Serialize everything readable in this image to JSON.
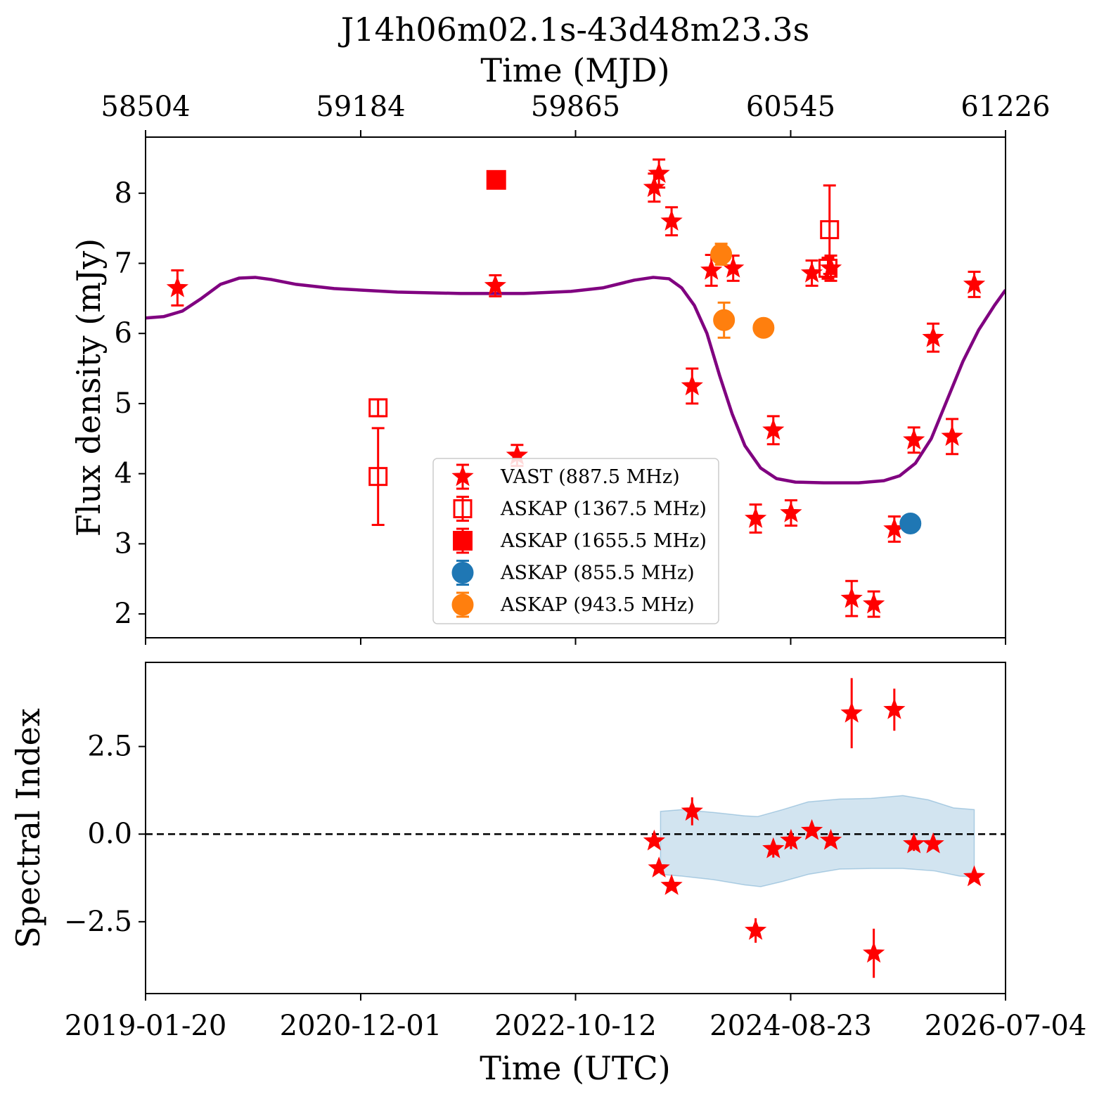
{
  "chart_data": [
    {
      "type": "scatter",
      "title": "J14h06m02.1s-43d48m23.3s",
      "xlabel": "Time (UTC)",
      "x2label": "Time (MJD)",
      "ylabel": "Flux density (mJy)",
      "x_unit": "MJD",
      "xlim": [
        58503,
        61225
      ],
      "ylim": [
        1.66,
        8.8
      ],
      "xticks": [
        {
          "mjd": 58503,
          "utc": "2019-01-20",
          "mjd_label": "58504"
        },
        {
          "mjd": 59184,
          "utc": "2020-12-01",
          "mjd_label": "59184"
        },
        {
          "mjd": 59864,
          "utc": "2022-10-12",
          "mjd_label": "59865"
        },
        {
          "mjd": 60545,
          "utc": "2024-08-23",
          "mjd_label": "60545"
        },
        {
          "mjd": 61225,
          "utc": "2026-07-04",
          "mjd_label": "61226"
        }
      ],
      "yticks": [
        {
          "value": 2,
          "label": "2"
        },
        {
          "value": 3,
          "label": "3"
        },
        {
          "value": 4,
          "label": "4"
        },
        {
          "value": 5,
          "label": "5"
        },
        {
          "value": 6,
          "label": "6"
        },
        {
          "value": 7,
          "label": "7"
        },
        {
          "value": 8,
          "label": "8"
        }
      ],
      "legend_position": "lower-center",
      "series": [
        {
          "name": "VAST (887.5 MHz)",
          "marker": "star",
          "filled": true,
          "color": "#ff0000",
          "points": [
            {
              "x": 58604,
              "y": 6.65,
              "err": 0.25
            },
            {
              "x": 59679,
              "y": 4.26,
              "err": 0.15
            },
            {
              "x": 59610,
              "y": 6.68,
              "err": 0.15
            },
            {
              "x": 60113,
              "y": 8.08,
              "err": 0.2
            },
            {
              "x": 60128,
              "y": 8.28,
              "err": 0.2
            },
            {
              "x": 60168,
              "y": 7.6,
              "err": 0.2
            },
            {
              "x": 60233,
              "y": 5.25,
              "err": 0.25
            },
            {
              "x": 60294,
              "y": 6.9,
              "err": 0.22
            },
            {
              "x": 60363,
              "y": 6.93,
              "err": 0.18
            },
            {
              "x": 60434,
              "y": 3.36,
              "err": 0.2
            },
            {
              "x": 60490,
              "y": 4.62,
              "err": 0.2
            },
            {
              "x": 60546,
              "y": 3.44,
              "err": 0.18
            },
            {
              "x": 60612,
              "y": 6.86,
              "err": 0.18
            },
            {
              "x": 60672,
              "y": 6.93,
              "err": 0.18
            },
            {
              "x": 60738,
              "y": 2.22,
              "err": 0.25
            },
            {
              "x": 60808,
              "y": 2.14,
              "err": 0.18
            },
            {
              "x": 60873,
              "y": 3.21,
              "err": 0.18
            },
            {
              "x": 60935,
              "y": 4.48,
              "err": 0.18
            },
            {
              "x": 60996,
              "y": 5.94,
              "err": 0.2
            },
            {
              "x": 61056,
              "y": 4.53,
              "err": 0.25
            },
            {
              "x": 61126,
              "y": 6.7,
              "err": 0.18
            }
          ]
        },
        {
          "name": "ASKAP (1367.5 MHz)",
          "marker": "square",
          "filled": false,
          "color": "#ff0000",
          "points": [
            {
              "x": 59239,
              "y": 4.94,
              "err": 0.12
            },
            {
              "x": 59239,
              "y": 3.96,
              "err": 0.69
            },
            {
              "x": 60668,
              "y": 7.48,
              "err": 0.63
            },
            {
              "x": 60663,
              "y": 6.93,
              "err": 0.15
            }
          ]
        },
        {
          "name": "ASKAP (1655.5 MHz)",
          "marker": "square",
          "filled": true,
          "color": "#ff0000",
          "points": [
            {
              "x": 59613,
              "y": 8.19,
              "err": 0.08
            }
          ]
        },
        {
          "name": "ASKAP (855.5 MHz)",
          "marker": "circle",
          "filled": true,
          "color": "#1f77b4",
          "points": [
            {
              "x": 60924,
              "y": 3.29,
              "err": 0.05
            }
          ]
        },
        {
          "name": "ASKAP (943.5 MHz)",
          "marker": "circle",
          "filled": true,
          "color": "#ff7f0e",
          "points": [
            {
              "x": 60325,
              "y": 7.13,
              "err": 0.15
            },
            {
              "x": 60334,
              "y": 6.19,
              "err": 0.25
            },
            {
              "x": 60459,
              "y": 6.08,
              "err": 0.05
            }
          ]
        }
      ],
      "model_curve": {
        "color": "#800080",
        "points": [
          [
            58503,
            6.22
          ],
          [
            58560,
            6.24
          ],
          [
            58620,
            6.32
          ],
          [
            58680,
            6.5
          ],
          [
            58740,
            6.7
          ],
          [
            58800,
            6.79
          ],
          [
            58850,
            6.8
          ],
          [
            58900,
            6.77
          ],
          [
            58980,
            6.7
          ],
          [
            59100,
            6.64
          ],
          [
            59300,
            6.59
          ],
          [
            59500,
            6.57
          ],
          [
            59700,
            6.57
          ],
          [
            59850,
            6.6
          ],
          [
            59950,
            6.65
          ],
          [
            60050,
            6.76
          ],
          [
            60110,
            6.8
          ],
          [
            60160,
            6.78
          ],
          [
            60200,
            6.65
          ],
          [
            60240,
            6.4
          ],
          [
            60280,
            6.0
          ],
          [
            60320,
            5.4
          ],
          [
            60360,
            4.85
          ],
          [
            60400,
            4.4
          ],
          [
            60450,
            4.08
          ],
          [
            60500,
            3.93
          ],
          [
            60560,
            3.88
          ],
          [
            60650,
            3.87
          ],
          [
            60760,
            3.87
          ],
          [
            60840,
            3.9
          ],
          [
            60890,
            3.97
          ],
          [
            60940,
            4.15
          ],
          [
            60990,
            4.5
          ],
          [
            61040,
            5.05
          ],
          [
            61090,
            5.6
          ],
          [
            61140,
            6.05
          ],
          [
            61190,
            6.4
          ],
          [
            61225,
            6.62
          ]
        ]
      }
    },
    {
      "type": "scatter",
      "xlabel": "Time (UTC)",
      "ylabel": "Spectral Index",
      "x_unit": "MJD",
      "xlim": [
        58503,
        61225
      ],
      "ylim": [
        -4.55,
        4.9
      ],
      "yticks": [
        {
          "value": -2.5,
          "label": "−2.5"
        },
        {
          "value": 0,
          "label": "0.0"
        },
        {
          "value": 2.5,
          "label": "2.5"
        }
      ],
      "reference_line": {
        "y": 0,
        "style": "dashed",
        "color": "#000000"
      },
      "band": {
        "color": "#1f77b4",
        "upper": [
          [
            60133,
            0.65
          ],
          [
            60200,
            0.7
          ],
          [
            60300,
            0.62
          ],
          [
            60400,
            0.52
          ],
          [
            60440,
            0.5
          ],
          [
            60520,
            0.7
          ],
          [
            60600,
            0.92
          ],
          [
            60700,
            1.0
          ],
          [
            60800,
            1.02
          ],
          [
            60900,
            1.1
          ],
          [
            60980,
            0.98
          ],
          [
            61060,
            0.75
          ],
          [
            61126,
            0.7
          ]
        ],
        "lower": [
          [
            60133,
            -1.15
          ],
          [
            60200,
            -1.2
          ],
          [
            60300,
            -1.3
          ],
          [
            60400,
            -1.45
          ],
          [
            60450,
            -1.5
          ],
          [
            60520,
            -1.35
          ],
          [
            60600,
            -1.15
          ],
          [
            60700,
            -1.0
          ],
          [
            60800,
            -0.98
          ],
          [
            60900,
            -0.98
          ],
          [
            61000,
            -1.05
          ],
          [
            61080,
            -1.2
          ],
          [
            61126,
            -1.22
          ]
        ]
      },
      "series": [
        {
          "name": "VAST (887.5 MHz)",
          "marker": "star",
          "filled": true,
          "color": "#ff0000",
          "points": [
            {
              "x": 60113,
              "y": -0.2,
              "err": 0.1
            },
            {
              "x": 60128,
              "y": -0.97,
              "err": 0.1
            },
            {
              "x": 60168,
              "y": -1.47,
              "err": 0.1
            },
            {
              "x": 60233,
              "y": 0.65,
              "err": 0.4
            },
            {
              "x": 60434,
              "y": -2.75,
              "err": 0.35
            },
            {
              "x": 60490,
              "y": -0.42,
              "err": 0.25
            },
            {
              "x": 60546,
              "y": -0.18,
              "err": 0.25
            },
            {
              "x": 60612,
              "y": 0.1,
              "err": 0.15
            },
            {
              "x": 60672,
              "y": -0.18,
              "err": 0.15
            },
            {
              "x": 60738,
              "y": 3.45,
              "err": 1.0
            },
            {
              "x": 60808,
              "y": -3.4,
              "err": 0.7
            },
            {
              "x": 60873,
              "y": 3.55,
              "err": 0.6
            },
            {
              "x": 60935,
              "y": -0.28,
              "err": 0.2
            },
            {
              "x": 60996,
              "y": -0.28,
              "err": 0.15
            },
            {
              "x": 61126,
              "y": -1.22,
              "err": 0.1
            }
          ]
        }
      ]
    }
  ]
}
